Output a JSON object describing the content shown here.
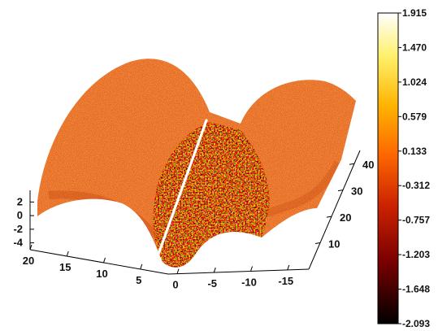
{
  "chart_data": {
    "type": "surface3d",
    "title": "",
    "xlabel": "",
    "ylabel": "",
    "zlabel": "",
    "x_ticks": [
      20,
      15,
      10,
      5,
      0,
      -5,
      -10,
      -15
    ],
    "y_ticks": [
      10,
      20,
      30,
      40
    ],
    "z_ticks": [
      2,
      0,
      -2,
      -4
    ],
    "xlim": [
      -20,
      20
    ],
    "ylim": [
      0,
      45
    ],
    "zlim": [
      -5,
      3
    ],
    "colormap": "hot",
    "colorbar": {
      "ticks": [
        "1.915",
        "1.470",
        "1.024",
        "0.579",
        "0.133",
        "-0.312",
        "-0.757",
        "-1.203",
        "-1.648",
        "-2.093"
      ],
      "range": [
        -2.093,
        1.915
      ],
      "colors": [
        "#000000",
        "#7a0000",
        "#cc2200",
        "#ff6a00",
        "#ffb300",
        "#fff06a",
        "#ffffff"
      ]
    },
    "surface": {
      "description_colors": {
        "dominant": "#e85a1c",
        "trough_noise": [
          "#5a0e00",
          "#b53a00",
          "#f07a1a",
          "#ffd23c",
          "#fff2a0"
        ],
        "seam_line": "#ffffff"
      }
    },
    "grid": false,
    "legend": "none"
  }
}
